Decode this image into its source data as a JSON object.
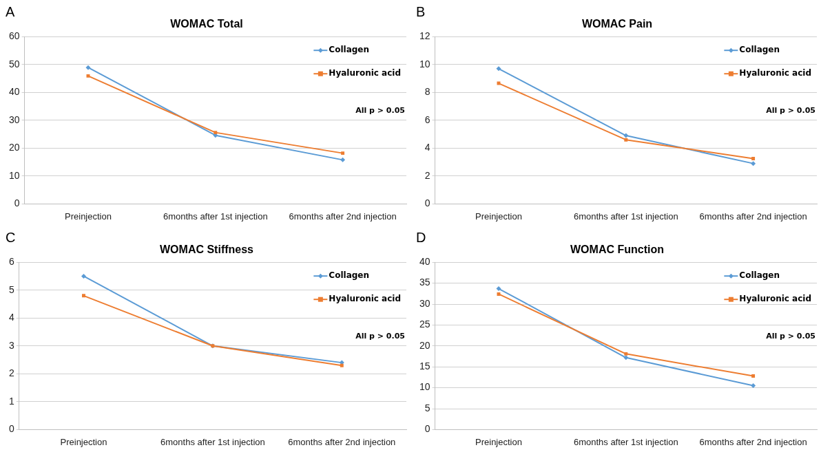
{
  "chart_data": [
    {
      "type": "line",
      "title": "WOMAC Total",
      "categories": [
        "Preinjection",
        "6months after 1st injection",
        "6months after 2nd injection"
      ],
      "series": [
        {
          "name": "Collagen",
          "color": "#5b9bd5",
          "marker": "diamond",
          "values": [
            48.9,
            24.6,
            15.8
          ]
        },
        {
          "name": "Hyaluronic acid",
          "color": "#ed7d31",
          "marker": "square",
          "values": [
            45.9,
            25.6,
            18.2
          ]
        }
      ],
      "ylim": [
        0,
        60
      ],
      "yticks": [
        0,
        10,
        20,
        30,
        40,
        50,
        60
      ],
      "grid": "y",
      "legend": "top right",
      "annotations": [
        "A",
        "All p > 0.05"
      ]
    },
    {
      "type": "line",
      "title": "WOMAC Pain",
      "categories": [
        "Preinjection",
        "6months after 1st injection",
        "6months after 2nd injection"
      ],
      "series": [
        {
          "name": "Collagen",
          "color": "#5b9bd5",
          "marker": "diamond",
          "values": [
            9.7,
            4.9,
            2.9
          ]
        },
        {
          "name": "Hyaluronic acid",
          "color": "#ed7d31",
          "marker": "square",
          "values": [
            8.65,
            4.6,
            3.25
          ]
        }
      ],
      "ylim": [
        0,
        12
      ],
      "yticks": [
        0,
        2,
        4,
        6,
        8,
        10,
        12
      ],
      "grid": "y",
      "legend": "top right",
      "annotations": [
        "B",
        "All p > 0.05"
      ]
    },
    {
      "type": "line",
      "title": "WOMAC Stiffness",
      "categories": [
        "Preinjection",
        "6months after 1st injection",
        "6months after 2nd injection"
      ],
      "series": [
        {
          "name": "Collagen",
          "color": "#5b9bd5",
          "marker": "diamond",
          "values": [
            5.5,
            3.0,
            2.4
          ]
        },
        {
          "name": "Hyaluronic acid",
          "color": "#ed7d31",
          "marker": "square",
          "values": [
            4.8,
            3.0,
            2.3
          ]
        }
      ],
      "ylim": [
        0,
        6
      ],
      "yticks": [
        0,
        1,
        2,
        3,
        4,
        5,
        6
      ],
      "grid": "y",
      "legend": "top right",
      "annotations": [
        "C",
        "All p > 0.05"
      ]
    },
    {
      "type": "line",
      "title": "WOMAC Function",
      "categories": [
        "Preinjection",
        "6months after 1st injection",
        "6months after 2nd injection"
      ],
      "series": [
        {
          "name": "Collagen",
          "color": "#5b9bd5",
          "marker": "diamond",
          "values": [
            33.7,
            17.2,
            10.5
          ]
        },
        {
          "name": "Hyaluronic acid",
          "color": "#ed7d31",
          "marker": "square",
          "values": [
            32.4,
            18.1,
            12.8
          ]
        }
      ],
      "ylim": [
        0,
        40
      ],
      "yticks": [
        0,
        5,
        10,
        15,
        20,
        25,
        30,
        35,
        40
      ],
      "grid": "y",
      "legend": "top right",
      "annotations": [
        "D",
        "All p > 0.05"
      ]
    }
  ]
}
